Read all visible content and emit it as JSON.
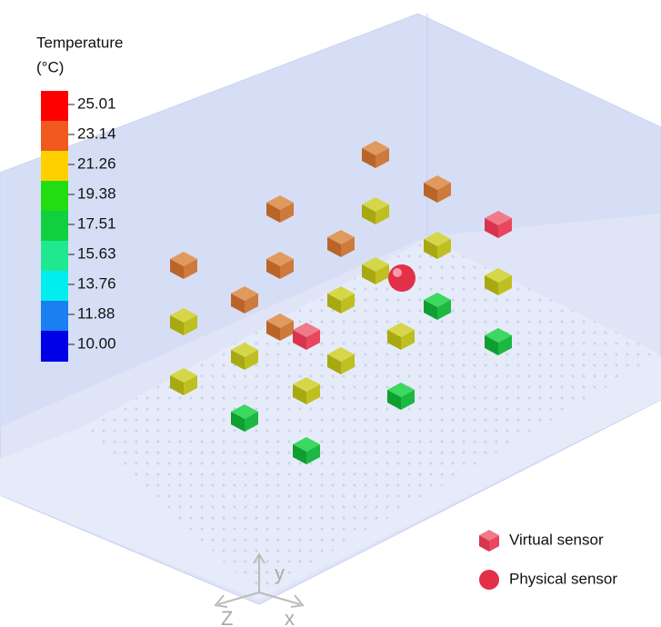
{
  "colorbar": {
    "title": [
      "Temperature",
      "(°C)"
    ],
    "ticks": [
      "25.01",
      "23.14",
      "21.26",
      "19.38",
      "17.51",
      "15.63",
      "13.76",
      "11.88",
      "10.00"
    ]
  },
  "legend": {
    "items": [
      "Virtual sensor",
      "Physical sensor"
    ]
  },
  "axes": {
    "y": "y",
    "z": "Z",
    "x": "x"
  }
}
